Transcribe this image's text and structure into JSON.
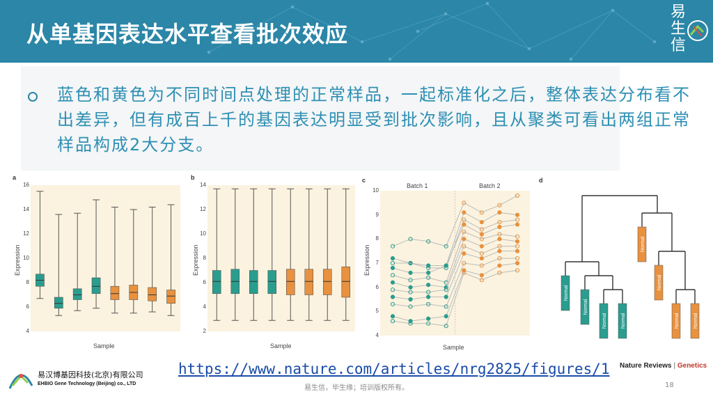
{
  "header": {
    "title": "从单基因表达水平查看批次效应",
    "logo_text": [
      "易",
      "生",
      "信"
    ],
    "bg_color": "#2b86a7"
  },
  "bullet": {
    "text": "蓝色和黄色为不同时间点处理的正常样品，一起标准化之后，整体表达分布看不出差异，但有成百上千的基因表达明显受到批次影响，且从聚类可看出两组正常样品构成2大分支。"
  },
  "colors": {
    "teal": "#2a9d8f",
    "orange": "#e8913f",
    "plot_bg": "#fbf3df"
  },
  "figure": {
    "panel_a": {
      "label": "a",
      "xlabel": "Sample",
      "ylabel": "Expression",
      "yticks": [
        "16",
        "14",
        "12",
        "10",
        "8",
        "6",
        "4"
      ]
    },
    "panel_b": {
      "label": "b",
      "xlabel": "Sample",
      "ylabel": "Expression",
      "yticks": [
        "14",
        "12",
        "10",
        "8",
        "6",
        "4",
        "2"
      ]
    },
    "panel_c": {
      "label": "c",
      "xlabel": "Sample",
      "ylabel": "Expression",
      "batch1": "Batch 1",
      "batch2": "Batch 2",
      "yticks": [
        "10",
        "9",
        "8",
        "7",
        "6",
        "5",
        "4"
      ]
    },
    "panel_d": {
      "label": "d",
      "leaf_label": "Normal"
    }
  },
  "chart_data": [
    {
      "type": "boxplot",
      "panel": "a",
      "xlabel": "Sample",
      "ylabel": "Expression",
      "ylim": [
        4,
        16
      ],
      "boxes": [
        {
          "batch": 1,
          "min": 6.7,
          "q1": 7.7,
          "median": 8.2,
          "q3": 8.7,
          "max": 15.5
        },
        {
          "batch": 1,
          "min": 5.3,
          "q1": 5.9,
          "median": 6.3,
          "q3": 6.8,
          "max": 13.6
        },
        {
          "batch": 1,
          "min": 5.7,
          "q1": 6.6,
          "median": 7.0,
          "q3": 7.5,
          "max": 13.7
        },
        {
          "batch": 1,
          "min": 5.9,
          "q1": 7.1,
          "median": 7.7,
          "q3": 8.4,
          "max": 14.8
        },
        {
          "batch": 2,
          "min": 5.5,
          "q1": 6.6,
          "median": 7.1,
          "q3": 7.7,
          "max": 14.2
        },
        {
          "batch": 2,
          "min": 5.5,
          "q1": 6.6,
          "median": 7.2,
          "q3": 7.8,
          "max": 14.0
        },
        {
          "batch": 2,
          "min": 5.6,
          "q1": 6.5,
          "median": 7.0,
          "q3": 7.6,
          "max": 14.2
        },
        {
          "batch": 2,
          "min": 5.3,
          "q1": 6.3,
          "median": 6.9,
          "q3": 7.4,
          "max": 14.4
        }
      ]
    },
    {
      "type": "boxplot",
      "panel": "b",
      "xlabel": "Sample",
      "ylabel": "Expression",
      "ylim": [
        2,
        14
      ],
      "boxes": [
        {
          "batch": 1,
          "min": 2.9,
          "q1": 5.1,
          "median": 6.1,
          "q3": 7.0,
          "max": 13.7
        },
        {
          "batch": 1,
          "min": 2.9,
          "q1": 5.1,
          "median": 6.1,
          "q3": 7.1,
          "max": 13.7
        },
        {
          "batch": 1,
          "min": 2.9,
          "q1": 5.1,
          "median": 6.1,
          "q3": 7.0,
          "max": 13.7
        },
        {
          "batch": 1,
          "min": 2.9,
          "q1": 5.1,
          "median": 6.1,
          "q3": 7.0,
          "max": 13.7
        },
        {
          "batch": 2,
          "min": 2.9,
          "q1": 5.0,
          "median": 6.1,
          "q3": 7.1,
          "max": 13.7
        },
        {
          "batch": 2,
          "min": 2.9,
          "q1": 5.0,
          "median": 6.1,
          "q3": 7.1,
          "max": 13.7
        },
        {
          "batch": 2,
          "min": 2.9,
          "q1": 5.0,
          "median": 6.1,
          "q3": 7.1,
          "max": 13.7
        },
        {
          "batch": 2,
          "min": 2.9,
          "q1": 4.8,
          "median": 6.1,
          "q3": 7.3,
          "max": 13.7
        }
      ]
    },
    {
      "type": "line",
      "panel": "c",
      "xlabel": "Sample",
      "ylabel": "Expression",
      "ylim": [
        4,
        10
      ],
      "series": [
        {
          "values": [
            7.7,
            8.0,
            7.9,
            7.7,
            9.5,
            9.1,
            9.4,
            9.8
          ]
        },
        {
          "values": [
            7.2,
            7.0,
            6.9,
            6.9,
            9.1,
            8.7,
            9.1,
            9.0
          ]
        },
        {
          "values": [
            7.0,
            7.0,
            6.8,
            6.8,
            8.8,
            8.4,
            8.7,
            8.8
          ]
        },
        {
          "values": [
            6.8,
            6.6,
            6.6,
            6.9,
            8.6,
            8.2,
            8.5,
            8.6
          ]
        },
        {
          "values": [
            6.5,
            6.3,
            6.4,
            6.2,
            8.3,
            8.0,
            8.2,
            8.1
          ]
        },
        {
          "values": [
            6.2,
            6.0,
            6.1,
            6.0,
            8.0,
            7.7,
            8.0,
            7.9
          ]
        },
        {
          "values": [
            5.9,
            5.8,
            5.8,
            5.9,
            7.7,
            7.4,
            7.7,
            7.7
          ]
        },
        {
          "values": [
            5.6,
            5.5,
            5.6,
            5.6,
            7.4,
            7.2,
            7.5,
            7.5
          ]
        },
        {
          "values": [
            5.3,
            5.2,
            5.3,
            5.2,
            7.0,
            6.9,
            7.2,
            7.2
          ]
        },
        {
          "values": [
            4.8,
            4.6,
            4.7,
            4.8,
            6.7,
            6.5,
            6.9,
            7.0
          ]
        },
        {
          "values": [
            4.6,
            4.5,
            4.5,
            4.4,
            6.6,
            6.3,
            6.6,
            6.7
          ]
        }
      ],
      "batch_labels": [
        "Batch 1",
        "Batch 2"
      ]
    }
  ],
  "url": "https://www.nature.com/articles/nrg2825/figures/1",
  "source": {
    "journal": "Nature Reviews",
    "section": "Genetics",
    "separator": "|"
  },
  "company": {
    "cn": "易汉博基因科技(北京)有限公司",
    "en": "EHBIO Gene Technology (Beijing) co., LTD"
  },
  "footer": {
    "text": "易生信，毕生缘；培训版权所有。",
    "page": "18"
  }
}
